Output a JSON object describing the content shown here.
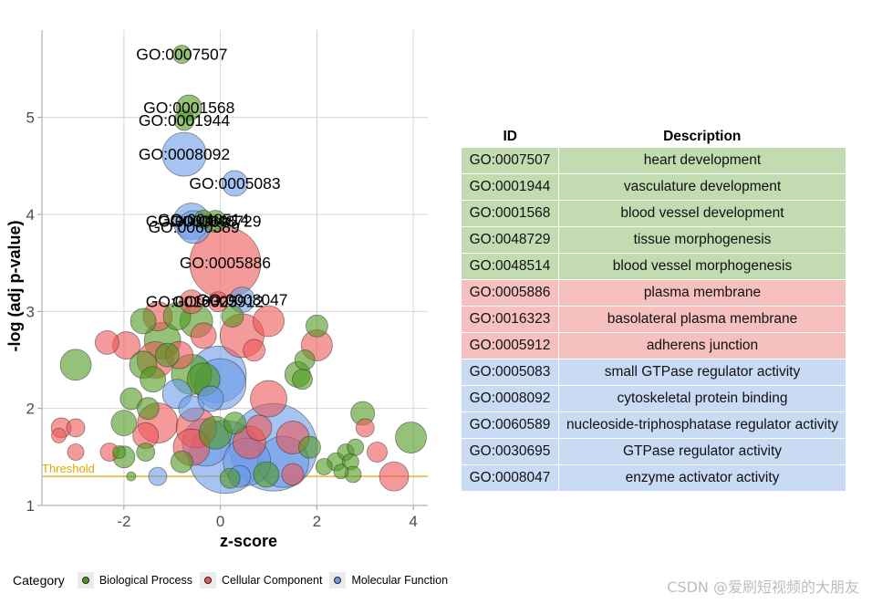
{
  "chart_data": {
    "type": "scatter",
    "subtype": "bubble",
    "xlabel": "z-score",
    "ylabel": "-log (adj p-value)",
    "xlim": [
      -3.7,
      4.3
    ],
    "ylim": [
      1.0,
      5.9
    ],
    "xticks": [
      -2,
      0,
      2,
      4
    ],
    "xtick_labels": [
      "-2",
      "0",
      "2",
      "4"
    ],
    "yticks": [
      1,
      2,
      3,
      4,
      5
    ],
    "ytick_labels": [
      "1",
      "2",
      "3",
      "4",
      "5"
    ],
    "grid": true,
    "threshold": {
      "label": "Threshold",
      "y": 1.3,
      "color": "#e6a800"
    },
    "legend_title": "Category",
    "legend_position": "bottom-left",
    "categories": [
      {
        "name": "Biological Process",
        "color": "#4f9a1e"
      },
      {
        "name": "Cellular Component",
        "color": "#ef5656"
      },
      {
        "name": "Molecular Function",
        "color": "#6b9be8"
      }
    ],
    "labeled_points": [
      {
        "id": "GO:0007507",
        "x": -0.8,
        "y": 5.65,
        "size": 10,
        "category": 0
      },
      {
        "id": "GO:0001568",
        "x": -0.65,
        "y": 5.1,
        "size": 14,
        "category": 0
      },
      {
        "id": "GO:0001944",
        "x": -0.75,
        "y": 4.97,
        "size": 11,
        "category": 0
      },
      {
        "id": "GO:0008092",
        "x": -0.75,
        "y": 4.62,
        "size": 24,
        "category": 2
      },
      {
        "id": "GO:0005083",
        "x": 0.3,
        "y": 4.32,
        "size": 14,
        "category": 2
      },
      {
        "id": "GO:0030695",
        "x": -0.6,
        "y": 3.93,
        "size": 20,
        "category": 2
      },
      {
        "id": "GO:0060589",
        "x": -0.55,
        "y": 3.87,
        "size": 18,
        "category": 2
      },
      {
        "id": "GO:0048729",
        "x": -0.1,
        "y": 3.93,
        "size": 12,
        "category": 0
      },
      {
        "id": "GO:0048514",
        "x": -0.35,
        "y": 3.95,
        "size": 10,
        "category": 0
      },
      {
        "id": "GO:0005886",
        "x": 0.1,
        "y": 3.5,
        "size": 39,
        "category": 1
      },
      {
        "id": "GO:0016323",
        "x": -0.6,
        "y": 3.1,
        "size": 13,
        "category": 1
      },
      {
        "id": "GO:0008047",
        "x": 0.45,
        "y": 3.12,
        "size": 14,
        "category": 2
      },
      {
        "id": "GO:0005912",
        "x": -0.05,
        "y": 3.1,
        "size": 11,
        "category": 1
      }
    ],
    "points": [
      {
        "x": -3.0,
        "y": 2.45,
        "size": 17,
        "category": 0
      },
      {
        "x": -1.95,
        "y": 2.65,
        "size": 15,
        "category": 1
      },
      {
        "x": -2.35,
        "y": 2.68,
        "size": 13,
        "category": 1
      },
      {
        "x": -1.6,
        "y": 2.9,
        "size": 14,
        "category": 0
      },
      {
        "x": -1.3,
        "y": 2.95,
        "size": 16,
        "category": 1
      },
      {
        "x": -1.2,
        "y": 2.7,
        "size": 20,
        "category": 0
      },
      {
        "x": -0.9,
        "y": 2.95,
        "size": 15,
        "category": 0
      },
      {
        "x": -0.5,
        "y": 2.9,
        "size": 18,
        "category": 0
      },
      {
        "x": -0.35,
        "y": 2.75,
        "size": 14,
        "category": 1
      },
      {
        "x": 0.25,
        "y": 2.95,
        "size": 12,
        "category": 0
      },
      {
        "x": 0.45,
        "y": 2.75,
        "size": 24,
        "category": 1
      },
      {
        "x": 0.7,
        "y": 2.6,
        "size": 12,
        "category": 1
      },
      {
        "x": 1.0,
        "y": 2.9,
        "size": 17,
        "category": 1
      },
      {
        "x": 2.0,
        "y": 2.85,
        "size": 12,
        "category": 0
      },
      {
        "x": 2.0,
        "y": 2.65,
        "size": 17,
        "category": 1
      },
      {
        "x": 1.6,
        "y": 2.35,
        "size": 14,
        "category": 0
      },
      {
        "x": 1.75,
        "y": 2.5,
        "size": 11,
        "category": 0
      },
      {
        "x": 1.7,
        "y": 2.3,
        "size": 11,
        "category": 0
      },
      {
        "x": 1.0,
        "y": 2.1,
        "size": 20,
        "category": 1
      },
      {
        "x": -1.6,
        "y": 2.45,
        "size": 15,
        "category": 0
      },
      {
        "x": -1.35,
        "y": 2.5,
        "size": 20,
        "category": 1
      },
      {
        "x": -1.1,
        "y": 2.55,
        "size": 13,
        "category": 0
      },
      {
        "x": -0.85,
        "y": 2.55,
        "size": 15,
        "category": 1
      },
      {
        "x": -0.6,
        "y": 2.35,
        "size": 22,
        "category": 0
      },
      {
        "x": -0.35,
        "y": 2.3,
        "size": 18,
        "category": 0
      },
      {
        "x": 0.0,
        "y": 2.25,
        "size": 28,
        "category": 2
      },
      {
        "x": -0.05,
        "y": 2.35,
        "size": 31,
        "category": 2
      },
      {
        "x": -0.9,
        "y": 2.15,
        "size": 16,
        "category": 2
      },
      {
        "x": -0.6,
        "y": 2.0,
        "size": 14,
        "category": 2
      },
      {
        "x": -1.4,
        "y": 2.3,
        "size": 14,
        "category": 0
      },
      {
        "x": -1.85,
        "y": 2.1,
        "size": 12,
        "category": 0
      },
      {
        "x": -1.5,
        "y": 2.0,
        "size": 12,
        "category": 0
      },
      {
        "x": -2.0,
        "y": 1.85,
        "size": 14,
        "category": 0
      },
      {
        "x": -1.3,
        "y": 1.85,
        "size": 22,
        "category": 1
      },
      {
        "x": -1.55,
        "y": 1.72,
        "size": 14,
        "category": 1
      },
      {
        "x": -1.55,
        "y": 1.55,
        "size": 10,
        "category": 0
      },
      {
        "x": -2.3,
        "y": 1.55,
        "size": 10,
        "category": 1
      },
      {
        "x": -2.0,
        "y": 1.5,
        "size": 12,
        "category": 0
      },
      {
        "x": -2.1,
        "y": 1.55,
        "size": 7,
        "category": 0
      },
      {
        "x": -3.3,
        "y": 1.8,
        "size": 11,
        "category": 1
      },
      {
        "x": -3.35,
        "y": 1.72,
        "size": 8,
        "category": 1
      },
      {
        "x": -3.0,
        "y": 1.8,
        "size": 10,
        "category": 1
      },
      {
        "x": -3.0,
        "y": 1.55,
        "size": 9,
        "category": 1
      },
      {
        "x": -1.3,
        "y": 1.3,
        "size": 10,
        "category": 2
      },
      {
        "x": -1.85,
        "y": 1.3,
        "size": 5,
        "category": 0
      },
      {
        "x": -0.8,
        "y": 1.45,
        "size": 12,
        "category": 0
      },
      {
        "x": -0.6,
        "y": 1.6,
        "size": 20,
        "category": 1
      },
      {
        "x": -0.5,
        "y": 1.8,
        "size": 22,
        "category": 1
      },
      {
        "x": -0.3,
        "y": 1.65,
        "size": 26,
        "category": 2
      },
      {
        "x": -0.1,
        "y": 1.75,
        "size": 18,
        "category": 0
      },
      {
        "x": 0.1,
        "y": 1.5,
        "size": 40,
        "category": 2
      },
      {
        "x": 0.3,
        "y": 1.85,
        "size": 12,
        "category": 0
      },
      {
        "x": 0.6,
        "y": 1.65,
        "size": 18,
        "category": 1
      },
      {
        "x": 0.8,
        "y": 1.8,
        "size": 14,
        "category": 1
      },
      {
        "x": 0.55,
        "y": 1.45,
        "size": 26,
        "category": 2
      },
      {
        "x": 1.1,
        "y": 1.6,
        "size": 48,
        "category": 2
      },
      {
        "x": 1.3,
        "y": 1.45,
        "size": 28,
        "category": 2
      },
      {
        "x": 1.5,
        "y": 1.7,
        "size": 18,
        "category": 1
      },
      {
        "x": 0.95,
        "y": 1.32,
        "size": 14,
        "category": 0
      },
      {
        "x": 0.4,
        "y": 1.3,
        "size": 12,
        "category": 2
      },
      {
        "x": 0.2,
        "y": 1.28,
        "size": 11,
        "category": 0
      },
      {
        "x": 1.5,
        "y": 1.32,
        "size": 12,
        "category": 1
      },
      {
        "x": 1.85,
        "y": 1.6,
        "size": 12,
        "category": 0
      },
      {
        "x": 2.15,
        "y": 1.4,
        "size": 9,
        "category": 0
      },
      {
        "x": 2.4,
        "y": 1.45,
        "size": 10,
        "category": 0
      },
      {
        "x": 2.6,
        "y": 1.55,
        "size": 9,
        "category": 0
      },
      {
        "x": 2.7,
        "y": 1.45,
        "size": 9,
        "category": 0
      },
      {
        "x": 2.8,
        "y": 1.6,
        "size": 9,
        "category": 0
      },
      {
        "x": 2.5,
        "y": 1.35,
        "size": 8,
        "category": 0
      },
      {
        "x": 2.75,
        "y": 1.32,
        "size": 9,
        "category": 0
      },
      {
        "x": 2.95,
        "y": 1.95,
        "size": 13,
        "category": 0
      },
      {
        "x": 3.0,
        "y": 1.8,
        "size": 10,
        "category": 1
      },
      {
        "x": 3.25,
        "y": 1.55,
        "size": 11,
        "category": 1
      },
      {
        "x": 3.6,
        "y": 1.3,
        "size": 16,
        "category": 1
      },
      {
        "x": 3.95,
        "y": 1.7,
        "size": 17,
        "category": 0
      },
      {
        "x": -0.2,
        "y": 2.1,
        "size": 14,
        "category": 2
      }
    ]
  },
  "table": {
    "headers": {
      "id": "ID",
      "description": "Description"
    },
    "rows": [
      {
        "id": "GO:0007507",
        "description": "heart development",
        "category": 0
      },
      {
        "id": "GO:0001944",
        "description": "vasculature development",
        "category": 0
      },
      {
        "id": "GO:0001568",
        "description": "blood vessel development",
        "category": 0
      },
      {
        "id": "GO:0048729",
        "description": "tissue morphogenesis",
        "category": 0
      },
      {
        "id": "GO:0048514",
        "description": "blood vessel morphogenesis",
        "category": 0
      },
      {
        "id": "GO:0005886",
        "description": "plasma membrane",
        "category": 1
      },
      {
        "id": "GO:0016323",
        "description": "basolateral plasma membrane",
        "category": 1
      },
      {
        "id": "GO:0005912",
        "description": "adherens junction",
        "category": 1
      },
      {
        "id": "GO:0005083",
        "description": "small GTPase regulator activity",
        "category": 2
      },
      {
        "id": "GO:0008092",
        "description": "cytoskeletal protein binding",
        "category": 2
      },
      {
        "id": "GO:0060589",
        "description": "nucleoside-triphosphatase regulator activity",
        "category": 2
      },
      {
        "id": "GO:0030695",
        "description": "GTPase regulator activity",
        "category": 2
      },
      {
        "id": "GO:0008047",
        "description": "enzyme activator activity",
        "category": 2
      }
    ],
    "row_colors": [
      "#c3dbb0",
      "#f5c0bd",
      "#c9daf5"
    ]
  },
  "legend": {
    "title": "Category",
    "items": [
      "Biological Process",
      "Cellular Component",
      "Molecular Function"
    ]
  },
  "watermark": "CSDN @爱刷短视频的大朋友"
}
